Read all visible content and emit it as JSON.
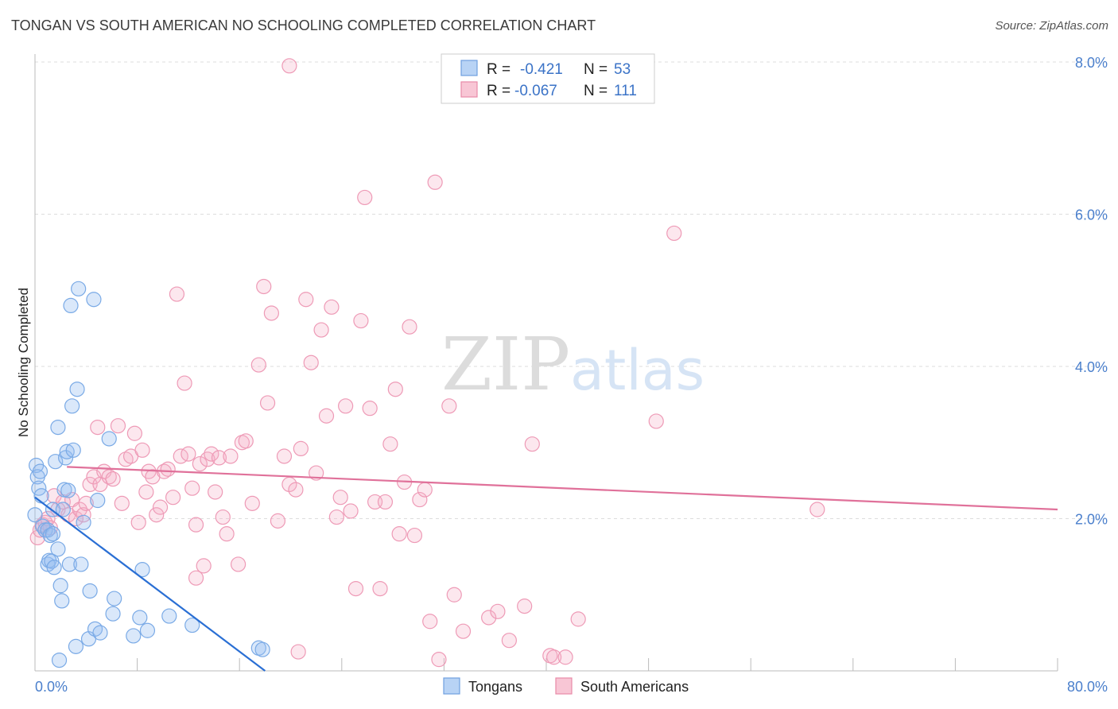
{
  "header": {
    "title": "TONGAN VS SOUTH AMERICAN NO SCHOOLING COMPLETED CORRELATION CHART",
    "source": "Source: ZipAtlas.com"
  },
  "watermark": {
    "zip": "ZIP",
    "atlas": "atlas"
  },
  "stats": [
    {
      "r_label": "R =",
      "r_value": "-0.421",
      "n_label": "N =",
      "n_value": "53",
      "swatch_fill": "#b8d3f5",
      "swatch_stroke": "#6f9fe0"
    },
    {
      "r_label": "R =",
      "r_value": "-0.067",
      "n_label": "N =",
      "n_value": "111",
      "swatch_fill": "#f8c6d5",
      "swatch_stroke": "#e88aa8"
    }
  ],
  "colors": {
    "tongans_fill": "rgba(150,190,240,0.35)",
    "tongans_stroke": "#7aaae6",
    "tongans_line": "#2a6fd4",
    "sa_fill": "rgba(245,175,200,0.30)",
    "sa_stroke": "#ee9ab6",
    "sa_line": "#e0719a",
    "tick_text": "#4a7fcc",
    "grid": "#dddddd"
  },
  "chart_data": {
    "type": "scatter",
    "title": "TONGAN VS SOUTH AMERICAN NO SCHOOLING COMPLETED CORRELATION CHART",
    "xlabel": "",
    "ylabel": "No Schooling Completed",
    "xlim": [
      0,
      80
    ],
    "ylim": [
      0,
      8.0
    ],
    "x_tick_labels": [
      "0.0%",
      "80.0%"
    ],
    "y_ticks": [
      2.0,
      4.0,
      6.0,
      8.0
    ],
    "y_tick_labels": [
      "2.0%",
      "4.0%",
      "6.0%",
      "8.0%"
    ],
    "grid": true,
    "legend_position": "bottom-center",
    "series": [
      {
        "name": "Tongans",
        "trend": {
          "x": [
            0,
            18
          ],
          "y": [
            2.28,
            0.0
          ]
        },
        "points": [
          {
            "x": 0.1,
            "y": 2.7
          },
          {
            "x": 0.2,
            "y": 2.55
          },
          {
            "x": 0.3,
            "y": 2.4
          },
          {
            "x": 0.5,
            "y": 2.3
          },
          {
            "x": 0.6,
            "y": 1.9
          },
          {
            "x": 0.8,
            "y": 1.85
          },
          {
            "x": 1.0,
            "y": 1.85
          },
          {
            "x": 1.2,
            "y": 1.78
          },
          {
            "x": 1.4,
            "y": 1.8
          },
          {
            "x": 1.0,
            "y": 1.4
          },
          {
            "x": 1.1,
            "y": 1.45
          },
          {
            "x": 1.3,
            "y": 1.44
          },
          {
            "x": 1.5,
            "y": 1.36
          },
          {
            "x": 1.4,
            "y": 2.12
          },
          {
            "x": 1.6,
            "y": 2.75
          },
          {
            "x": 1.8,
            "y": 1.6
          },
          {
            "x": 1.8,
            "y": 3.2
          },
          {
            "x": 2.0,
            "y": 1.12
          },
          {
            "x": 2.1,
            "y": 0.92
          },
          {
            "x": 2.2,
            "y": 2.12
          },
          {
            "x": 2.3,
            "y": 2.38
          },
          {
            "x": 2.4,
            "y": 2.8
          },
          {
            "x": 2.5,
            "y": 2.88
          },
          {
            "x": 2.6,
            "y": 2.37
          },
          {
            "x": 2.7,
            "y": 1.4
          },
          {
            "x": 2.8,
            "y": 4.8
          },
          {
            "x": 2.9,
            "y": 3.48
          },
          {
            "x": 3.0,
            "y": 2.9
          },
          {
            "x": 3.2,
            "y": 0.32
          },
          {
            "x": 3.3,
            "y": 3.7
          },
          {
            "x": 3.4,
            "y": 5.02
          },
          {
            "x": 3.6,
            "y": 1.4
          },
          {
            "x": 3.8,
            "y": 1.95
          },
          {
            "x": 4.2,
            "y": 0.42
          },
          {
            "x": 4.3,
            "y": 1.05
          },
          {
            "x": 4.6,
            "y": 4.88
          },
          {
            "x": 4.7,
            "y": 0.55
          },
          {
            "x": 4.9,
            "y": 2.24
          },
          {
            "x": 5.1,
            "y": 0.5
          },
          {
            "x": 5.8,
            "y": 3.05
          },
          {
            "x": 6.1,
            "y": 0.75
          },
          {
            "x": 6.2,
            "y": 0.95
          },
          {
            "x": 7.7,
            "y": 0.46
          },
          {
            "x": 8.2,
            "y": 0.7
          },
          {
            "x": 8.4,
            "y": 1.33
          },
          {
            "x": 8.8,
            "y": 0.53
          },
          {
            "x": 10.5,
            "y": 0.72
          },
          {
            "x": 12.3,
            "y": 0.6
          },
          {
            "x": 17.5,
            "y": 0.3
          },
          {
            "x": 17.8,
            "y": 0.28
          },
          {
            "x": 1.9,
            "y": 0.14
          },
          {
            "x": 0.0,
            "y": 2.05
          },
          {
            "x": 0.4,
            "y": 2.62
          }
        ]
      },
      {
        "name": "South Americans",
        "trend": {
          "x": [
            2.5,
            80
          ],
          "y": [
            2.68,
            2.12
          ]
        },
        "points": [
          {
            "x": 0.2,
            "y": 1.75
          },
          {
            "x": 0.4,
            "y": 1.85
          },
          {
            "x": 0.6,
            "y": 1.92
          },
          {
            "x": 0.8,
            "y": 1.95
          },
          {
            "x": 1.0,
            "y": 2.0
          },
          {
            "x": 1.2,
            "y": 1.88
          },
          {
            "x": 1.5,
            "y": 2.3
          },
          {
            "x": 1.8,
            "y": 2.12
          },
          {
            "x": 2.2,
            "y": 2.22
          },
          {
            "x": 2.6,
            "y": 2.05
          },
          {
            "x": 2.9,
            "y": 2.25
          },
          {
            "x": 3.2,
            "y": 2.0
          },
          {
            "x": 3.5,
            "y": 2.12
          },
          {
            "x": 3.8,
            "y": 2.05
          },
          {
            "x": 4.0,
            "y": 2.2
          },
          {
            "x": 4.3,
            "y": 2.45
          },
          {
            "x": 4.6,
            "y": 2.55
          },
          {
            "x": 4.9,
            "y": 3.2
          },
          {
            "x": 5.1,
            "y": 2.45
          },
          {
            "x": 5.4,
            "y": 2.62
          },
          {
            "x": 5.8,
            "y": 2.55
          },
          {
            "x": 6.1,
            "y": 2.52
          },
          {
            "x": 6.5,
            "y": 3.22
          },
          {
            "x": 6.8,
            "y": 2.2
          },
          {
            "x": 7.1,
            "y": 2.78
          },
          {
            "x": 7.5,
            "y": 2.82
          },
          {
            "x": 7.8,
            "y": 3.12
          },
          {
            "x": 8.1,
            "y": 1.95
          },
          {
            "x": 8.4,
            "y": 2.9
          },
          {
            "x": 8.7,
            "y": 2.35
          },
          {
            "x": 8.9,
            "y": 2.62
          },
          {
            "x": 9.2,
            "y": 2.55
          },
          {
            "x": 9.5,
            "y": 2.05
          },
          {
            "x": 9.8,
            "y": 2.15
          },
          {
            "x": 10.1,
            "y": 2.62
          },
          {
            "x": 10.4,
            "y": 2.65
          },
          {
            "x": 10.8,
            "y": 2.28
          },
          {
            "x": 11.1,
            "y": 4.95
          },
          {
            "x": 11.4,
            "y": 2.82
          },
          {
            "x": 11.7,
            "y": 3.78
          },
          {
            "x": 12.0,
            "y": 2.85
          },
          {
            "x": 12.3,
            "y": 2.4
          },
          {
            "x": 12.6,
            "y": 1.92
          },
          {
            "x": 12.9,
            "y": 2.72
          },
          {
            "x": 13.2,
            "y": 1.38
          },
          {
            "x": 13.5,
            "y": 2.78
          },
          {
            "x": 13.8,
            "y": 2.85
          },
          {
            "x": 14.1,
            "y": 2.35
          },
          {
            "x": 14.4,
            "y": 2.8
          },
          {
            "x": 14.7,
            "y": 2.02
          },
          {
            "x": 15.0,
            "y": 1.8
          },
          {
            "x": 15.3,
            "y": 2.82
          },
          {
            "x": 15.9,
            "y": 1.4
          },
          {
            "x": 16.2,
            "y": 3.0
          },
          {
            "x": 16.5,
            "y": 3.02
          },
          {
            "x": 17.0,
            "y": 2.2
          },
          {
            "x": 17.5,
            "y": 4.02
          },
          {
            "x": 17.9,
            "y": 5.05
          },
          {
            "x": 18.2,
            "y": 3.52
          },
          {
            "x": 18.5,
            "y": 4.7
          },
          {
            "x": 19.0,
            "y": 1.97
          },
          {
            "x": 19.5,
            "y": 2.82
          },
          {
            "x": 19.9,
            "y": 2.45
          },
          {
            "x": 20.4,
            "y": 2.38
          },
          {
            "x": 20.8,
            "y": 2.92
          },
          {
            "x": 21.2,
            "y": 4.88
          },
          {
            "x": 21.6,
            "y": 4.05
          },
          {
            "x": 22.0,
            "y": 2.6
          },
          {
            "x": 22.4,
            "y": 4.48
          },
          {
            "x": 22.8,
            "y": 3.35
          },
          {
            "x": 23.2,
            "y": 4.78
          },
          {
            "x": 23.6,
            "y": 2.02
          },
          {
            "x": 23.9,
            "y": 2.28
          },
          {
            "x": 24.3,
            "y": 3.48
          },
          {
            "x": 24.7,
            "y": 2.1
          },
          {
            "x": 25.1,
            "y": 1.08
          },
          {
            "x": 25.5,
            "y": 4.6
          },
          {
            "x": 25.8,
            "y": 6.22
          },
          {
            "x": 26.2,
            "y": 3.45
          },
          {
            "x": 26.6,
            "y": 2.22
          },
          {
            "x": 27.0,
            "y": 1.08
          },
          {
            "x": 27.4,
            "y": 2.22
          },
          {
            "x": 27.8,
            "y": 2.98
          },
          {
            "x": 28.2,
            "y": 3.7
          },
          {
            "x": 28.5,
            "y": 1.8
          },
          {
            "x": 28.9,
            "y": 2.48
          },
          {
            "x": 29.3,
            "y": 4.52
          },
          {
            "x": 29.7,
            "y": 1.78
          },
          {
            "x": 30.1,
            "y": 2.25
          },
          {
            "x": 30.5,
            "y": 2.38
          },
          {
            "x": 30.9,
            "y": 0.65
          },
          {
            "x": 31.3,
            "y": 6.42
          },
          {
            "x": 31.6,
            "y": 0.15
          },
          {
            "x": 32.4,
            "y": 3.48
          },
          {
            "x": 32.8,
            "y": 1.0
          },
          {
            "x": 33.5,
            "y": 0.52
          },
          {
            "x": 35.5,
            "y": 0.7
          },
          {
            "x": 36.2,
            "y": 0.78
          },
          {
            "x": 37.1,
            "y": 0.4
          },
          {
            "x": 38.3,
            "y": 0.85
          },
          {
            "x": 38.9,
            "y": 2.98
          },
          {
            "x": 40.3,
            "y": 0.2
          },
          {
            "x": 40.6,
            "y": 0.18
          },
          {
            "x": 41.5,
            "y": 0.18
          },
          {
            "x": 42.5,
            "y": 0.68
          },
          {
            "x": 48.6,
            "y": 3.28
          },
          {
            "x": 50.0,
            "y": 5.75
          },
          {
            "x": 61.2,
            "y": 2.12
          },
          {
            "x": 19.9,
            "y": 7.95
          },
          {
            "x": 12.6,
            "y": 1.22
          },
          {
            "x": 20.6,
            "y": 0.25
          }
        ]
      }
    ]
  }
}
